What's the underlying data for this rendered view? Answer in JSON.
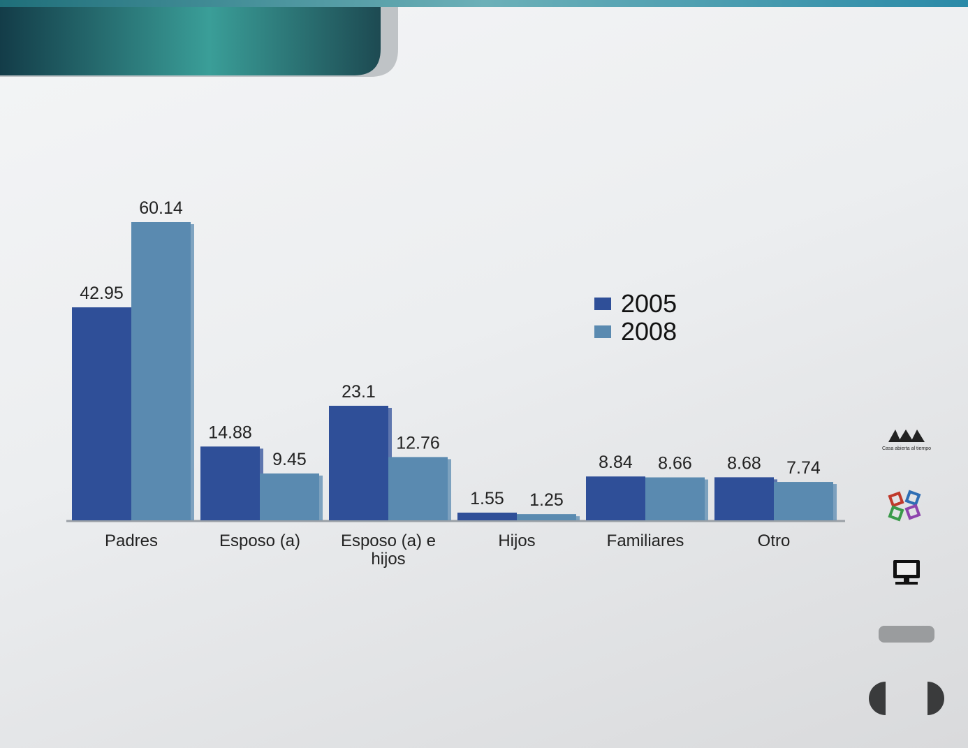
{
  "chart_data": {
    "type": "bar",
    "categories": [
      "Padres",
      "Esposo (a)",
      "Esposo (a) e hijos",
      "Hijos",
      "Familiares",
      "Otro"
    ],
    "series": [
      {
        "name": "2005",
        "color": "#2f4f98",
        "values": [
          42.95,
          14.88,
          23.1,
          1.55,
          8.84,
          8.68
        ]
      },
      {
        "name": "2008",
        "color": "#5a8ab0",
        "values": [
          60.14,
          9.45,
          12.76,
          1.25,
          8.66,
          7.74
        ]
      }
    ],
    "legend": "upper right"
  },
  "sidebar": {
    "logo_caption": "Casa abierta al tiempo"
  }
}
